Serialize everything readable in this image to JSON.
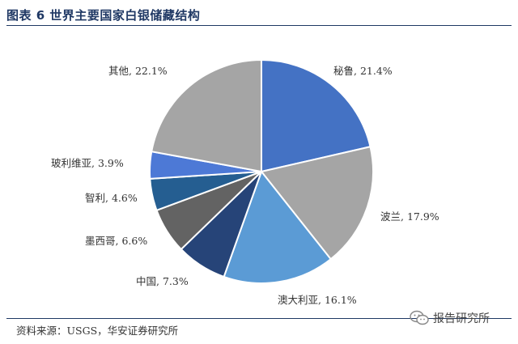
{
  "header": {
    "title": "图表 6 世界主要国家白银储藏结构"
  },
  "footer": {
    "source": "资料来源：USGS，华安证券研究所",
    "watermark_text": "报告研究所",
    "watermark_icon": "wechat-icon"
  },
  "chart_data": {
    "type": "pie",
    "title": "图表 6 世界主要国家白银储藏结构",
    "unit": "%",
    "slices": [
      {
        "name": "秘鲁",
        "value": 21.4,
        "label": "秘鲁, 21.4%",
        "color": "#4472c4"
      },
      {
        "name": "波兰",
        "value": 17.9,
        "label": "波兰, 17.9%",
        "color": "#a5a5a5"
      },
      {
        "name": "澳大利亚",
        "value": 16.1,
        "label": "澳大利亚, 16.1%",
        "color": "#5b9bd5"
      },
      {
        "name": "中国",
        "value": 7.3,
        "label": "中国, 7.3%",
        "color": "#264478"
      },
      {
        "name": "墨西哥",
        "value": 6.6,
        "label": "墨西哥, 6.6%",
        "color": "#636363"
      },
      {
        "name": "智利",
        "value": 4.6,
        "label": "智利, 4.6%",
        "color": "#255e91"
      },
      {
        "name": "玻利维亚",
        "value": 3.9,
        "label": "玻利维亚, 3.9%",
        "color": "#4d79d6"
      },
      {
        "name": "其他",
        "value": 22.1,
        "label": "其他, 22.1%",
        "color": "#a5a5a5"
      }
    ],
    "start": "12 o'clock",
    "direction": "clockwise"
  }
}
